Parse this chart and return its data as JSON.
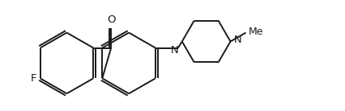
{
  "background_color": "#ffffff",
  "line_color": "#1a1a1a",
  "line_width": 1.4,
  "font_size": 9.5,
  "label_F": "F",
  "label_O": "O",
  "label_N1": "N",
  "label_N2": "N",
  "label_Me": "Me",
  "xlim": [
    0.0,
    4.26
  ],
  "ylim": [
    0.0,
    1.38
  ]
}
